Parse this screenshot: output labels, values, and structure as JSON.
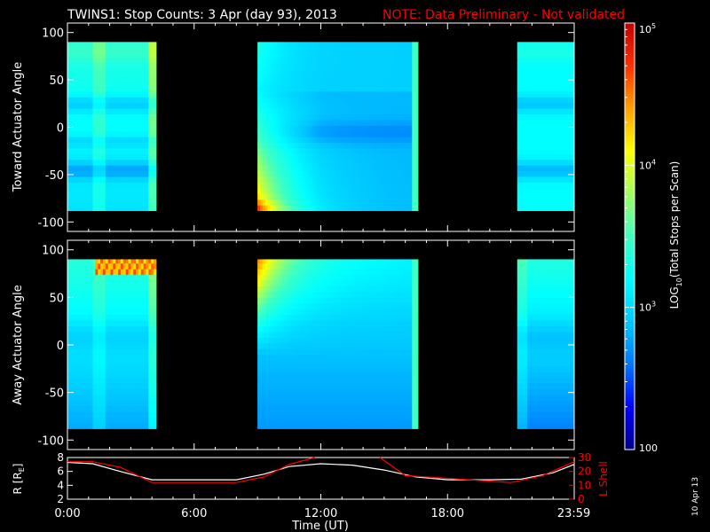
{
  "header": {
    "title": "TWINS1: Stop Counts:  3 Apr (day  93), 2013",
    "note": "NOTE: Data Preliminary - Not validated"
  },
  "side_date": "10 Apr 13",
  "colors": {
    "background": "#000000",
    "frame": "#ffffff",
    "note": "#ff0000",
    "r_line": "#ffffff",
    "lshell_line": "#ff0000"
  },
  "colorbar": {
    "label": "LOG10(Total Stops per Scan)",
    "label_main": "LOG",
    "label_sub": "10",
    "label_rest": "(Total Stops per Scan)",
    "scale": "log",
    "range": [
      100,
      100000
    ],
    "ticks": [
      {
        "value": 100000,
        "base": "10",
        "exp": "5"
      },
      {
        "value": 10000,
        "base": "10",
        "exp": "4"
      },
      {
        "value": 1000,
        "base": "10",
        "exp": "3"
      },
      {
        "value": 100,
        "base": "100",
        "exp": ""
      }
    ],
    "colormap": [
      "#00008c",
      "#0000ff",
      "#0078ff",
      "#00c8ff",
      "#00ffff",
      "#40ffc0",
      "#a0ff60",
      "#ffff00",
      "#ffa000",
      "#ff3000",
      "#c00000"
    ]
  },
  "chart_data": [
    {
      "type": "heatmap",
      "ylabel": "Toward Actuator Angle",
      "ylim": [
        -110,
        110
      ],
      "yticks": [
        -100,
        -50,
        0,
        50,
        100
      ],
      "y_data_range": [
        -88,
        90
      ],
      "xlim_hours": [
        0,
        24
      ],
      "data_segments_hours": [
        [
          0,
          4.2
        ],
        [
          9.0,
          16.6
        ],
        [
          21.3,
          24
        ]
      ],
      "xtick_labels_shown": false,
      "value_units": "Total Stops per Scan (log scale)",
      "features": [
        {
          "x_hours": [
            0,
            4.2
          ],
          "y": [
            -88,
            90
          ],
          "level": "cyan-blue, dark blue bands near 25 and -45"
        },
        {
          "x_hours": [
            9.0,
            12.0
          ],
          "y": [
            -88,
            -40
          ],
          "level": "yellow-orange, max near bottom"
        },
        {
          "x_hours": [
            12.0,
            16.3
          ],
          "y": [
            -88,
            90
          ],
          "level": "blue"
        },
        {
          "x_hours": [
            21.3,
            24
          ],
          "y": [
            -88,
            90
          ],
          "level": "cyan-blue, dark bands near 25 and -45"
        }
      ]
    },
    {
      "type": "heatmap",
      "ylabel": "Away Actuator Angle",
      "ylim": [
        -110,
        110
      ],
      "yticks": [
        -100,
        -50,
        0,
        50,
        100
      ],
      "y_data_range": [
        -88,
        90
      ],
      "xlim_hours": [
        0,
        24
      ],
      "data_segments_hours": [
        [
          0,
          4.2
        ],
        [
          9.0,
          16.6
        ],
        [
          21.3,
          24
        ]
      ],
      "xtick_labels_shown": false,
      "value_units": "Total Stops per Scan (log scale)",
      "features": [
        {
          "x_hours": [
            1.3,
            4.2
          ],
          "y": [
            75,
            90
          ],
          "level": "orange-red patch"
        },
        {
          "x_hours": [
            9.0,
            11.0
          ],
          "y": [
            40,
            90
          ],
          "level": "yellow-orange"
        },
        {
          "x_hours": [
            9.0,
            16.3
          ],
          "y": [
            -88,
            20
          ],
          "level": "blue"
        }
      ]
    },
    {
      "type": "line",
      "xlabel": "Time (UT)",
      "xtick_labels": [
        "0:00",
        "6:00",
        "12:00",
        "18:00",
        "23:59"
      ],
      "xtick_hours": [
        0,
        6,
        12,
        18,
        23.983
      ],
      "xlim_hours": [
        0,
        24
      ],
      "left_axis": {
        "label": "R [RE]",
        "label_main": "R [R",
        "label_sub": "E",
        "label_end": "]",
        "ylim": [
          2,
          8
        ],
        "yticks": [
          2,
          4,
          6,
          8
        ]
      },
      "right_axis": {
        "label": "L Shell",
        "ylim": [
          0,
          30
        ],
        "yticks": [
          0,
          10,
          20,
          30
        ]
      },
      "series": [
        {
          "axis": "left",
          "color": "#ffffff",
          "x_hours": [
            0,
            1.2,
            2.5,
            4.0,
            6.0,
            8.0,
            9.3,
            10.5,
            12.0,
            13.5,
            15.0,
            16.5,
            18.0,
            20.0,
            21.5,
            23.0,
            24.0
          ],
          "values": [
            7.3,
            7.1,
            6.0,
            4.8,
            4.8,
            4.8,
            5.6,
            6.7,
            7.1,
            6.9,
            6.2,
            5.2,
            4.8,
            4.8,
            4.9,
            5.8,
            7.0
          ]
        },
        {
          "axis": "right",
          "color": "#ff0000",
          "x_hours": [
            0,
            1.2,
            2.5,
            4.0,
            6.0,
            8.0,
            9.3,
            10.5,
            11.7,
            null,
            14.8,
            16.0,
            18.0,
            21.0,
            22.5,
            24.0
          ],
          "values": [
            27,
            27,
            23,
            12,
            12,
            12,
            16,
            25,
            31,
            null,
            31,
            17,
            15,
            12,
            17,
            27
          ]
        }
      ]
    }
  ]
}
